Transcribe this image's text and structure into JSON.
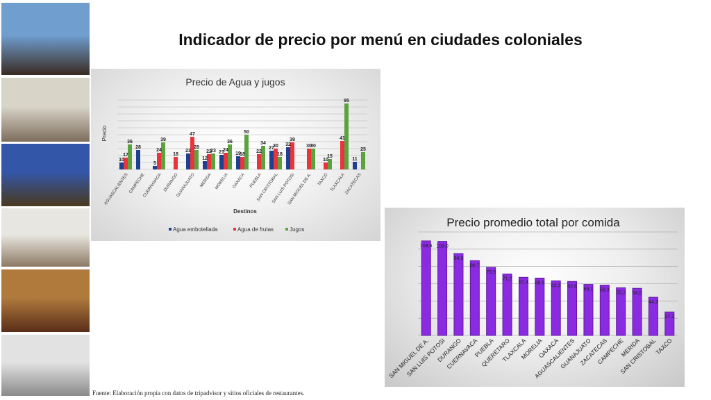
{
  "slide": {
    "title": "Indicador de precio por menú en ciudades coloniales",
    "source": "Fuente: Elaboración propia con datos de tripadvisor y sitios oficiales de restaurantes."
  },
  "photos": [
    {
      "name": "rooftop-couple-photo",
      "sky": "#6f9ecf",
      "ground": "#3a2a22"
    },
    {
      "name": "colonial-street-crowd-photo",
      "sky": "#d9d4c8",
      "ground": "#7d6d5c"
    },
    {
      "name": "terrace-night-view-photo",
      "sky": "#3356a8",
      "ground": "#4a3a1e"
    },
    {
      "name": "church-tourists-photo",
      "sky": "#e8e6e0",
      "ground": "#8c7a64"
    },
    {
      "name": "hotel-room-photo",
      "sky": "#b07a3c",
      "ground": "#5a2e1a"
    },
    {
      "name": "shopping-mall-photo",
      "sky": "#e2e2e2",
      "ground": "#8a8a8a"
    }
  ],
  "colors": {
    "agua": "#1f3f8f",
    "frutas": "#e8343a",
    "jugos": "#5aa33e",
    "promedio": "#8a2be2",
    "promedio_dark": "#5e1a9e"
  },
  "chart_data": [
    {
      "type": "bar",
      "title": "Precio de Agua y jugos",
      "xlabel": "Destinos",
      "ylabel": "Precio",
      "categories": [
        "AGUASCALIENTES",
        "CAMPECHE",
        "CUERNAVACA",
        "DURANGO",
        "GUANAJUATO",
        "MERIDA",
        "MORELIA",
        "OAXACA",
        "PUEBLA",
        "SAN CRISTOBAL",
        "SAN LUIS POTOSI",
        "SAN MIGUEL DE A.",
        "TAXCO",
        "TLAXCALA",
        "ZACATECAS"
      ],
      "ylim": [
        0,
        100
      ],
      "grid": true,
      "legend": "bottom",
      "series": [
        {
          "name": "Agua embotellada",
          "values": [
            10,
            28,
            5,
            null,
            23,
            12,
            21,
            19,
            null,
            27,
            32,
            null,
            null,
            null,
            11
          ]
        },
        {
          "name": "Agua de frutas",
          "values": [
            17,
            null,
            24,
            18,
            47,
            22,
            24,
            18,
            22,
            30,
            39,
            30,
            10,
            41,
            null
          ]
        },
        {
          "name": "Jugos",
          "values": [
            36,
            null,
            39,
            null,
            28,
            23,
            36,
            50,
            34,
            18,
            null,
            30,
            15,
            95,
            25
          ]
        }
      ]
    },
    {
      "type": "bar",
      "title": "Precio promedio total por comida",
      "xlabel": "",
      "ylabel": "",
      "categories": [
        "SAN MIGUEL DE A.",
        "SAN LUIS POTOSI",
        "DURANGO",
        "CUERNAVACA",
        "PUEBLA",
        "QUERETARO",
        "TLAXCALA",
        "MORELIA",
        "OAXACA",
        "AGUASCALIENTES",
        "GUANAJUATO",
        "ZACATECAS",
        "CAMPECHE",
        "MERIDA",
        "SAN CRISTOBAL",
        "TAXCO"
      ],
      "values": [
        109.6,
        109.0,
        94.9,
        86.7,
        78.9,
        71.2,
        67.4,
        66.5,
        63.3,
        62.6,
        59.1,
        58.3,
        55.3,
        54.6,
        44.2,
        27.2
      ],
      "labels": [
        "109,6",
        "109,0",
        "94,9",
        "86,7",
        "78,9",
        "71,2",
        "67,4",
        "66,5",
        "63,3",
        "62,6",
        "59,1",
        "58,3",
        "55,3",
        "54,6",
        "44,2",
        "27,2"
      ],
      "ylim": [
        0,
        120
      ],
      "grid": true,
      "legend": "none"
    }
  ]
}
